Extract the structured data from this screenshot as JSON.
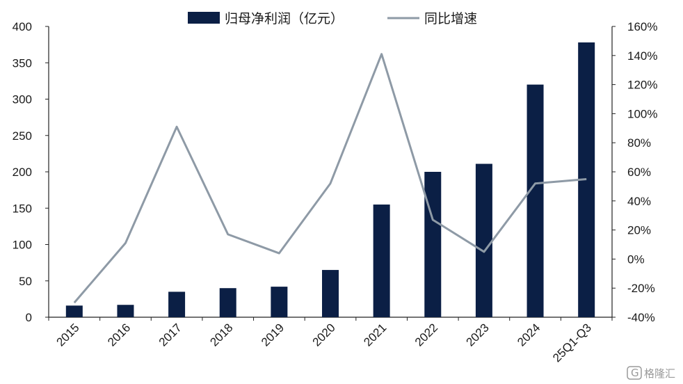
{
  "chart_data": {
    "type": "bar",
    "categories": [
      "2015",
      "2016",
      "2017",
      "2018",
      "2019",
      "2020",
      "2021",
      "2022",
      "2023",
      "2024",
      "25Q1-Q3"
    ],
    "series": [
      {
        "name": "归母净利润（亿元）",
        "type": "bar",
        "axis": "left",
        "color": "#0b1f45",
        "values": [
          16,
          17,
          35,
          40,
          42,
          65,
          155,
          200,
          211,
          320,
          378
        ]
      },
      {
        "name": "同比增速",
        "type": "line",
        "axis": "right",
        "color": "#8e9aa6",
        "values": [
          -30,
          11,
          91,
          17,
          4,
          52,
          141,
          27,
          5,
          52,
          55
        ]
      }
    ],
    "y_left": {
      "ylim": [
        0,
        400
      ],
      "ticks": [
        "0",
        "50",
        "100",
        "150",
        "200",
        "250",
        "300",
        "350",
        "400"
      ]
    },
    "y_right": {
      "ylim": [
        -40,
        160
      ],
      "unit": "%",
      "ticks": [
        "-40%",
        "-20%",
        "0%",
        "20%",
        "40%",
        "60%",
        "80%",
        "100%",
        "120%",
        "140%",
        "160%"
      ]
    },
    "grid": false,
    "legend": {
      "position": "top"
    }
  },
  "watermark": {
    "text": "格隆汇",
    "icon": "g-logo-icon"
  }
}
